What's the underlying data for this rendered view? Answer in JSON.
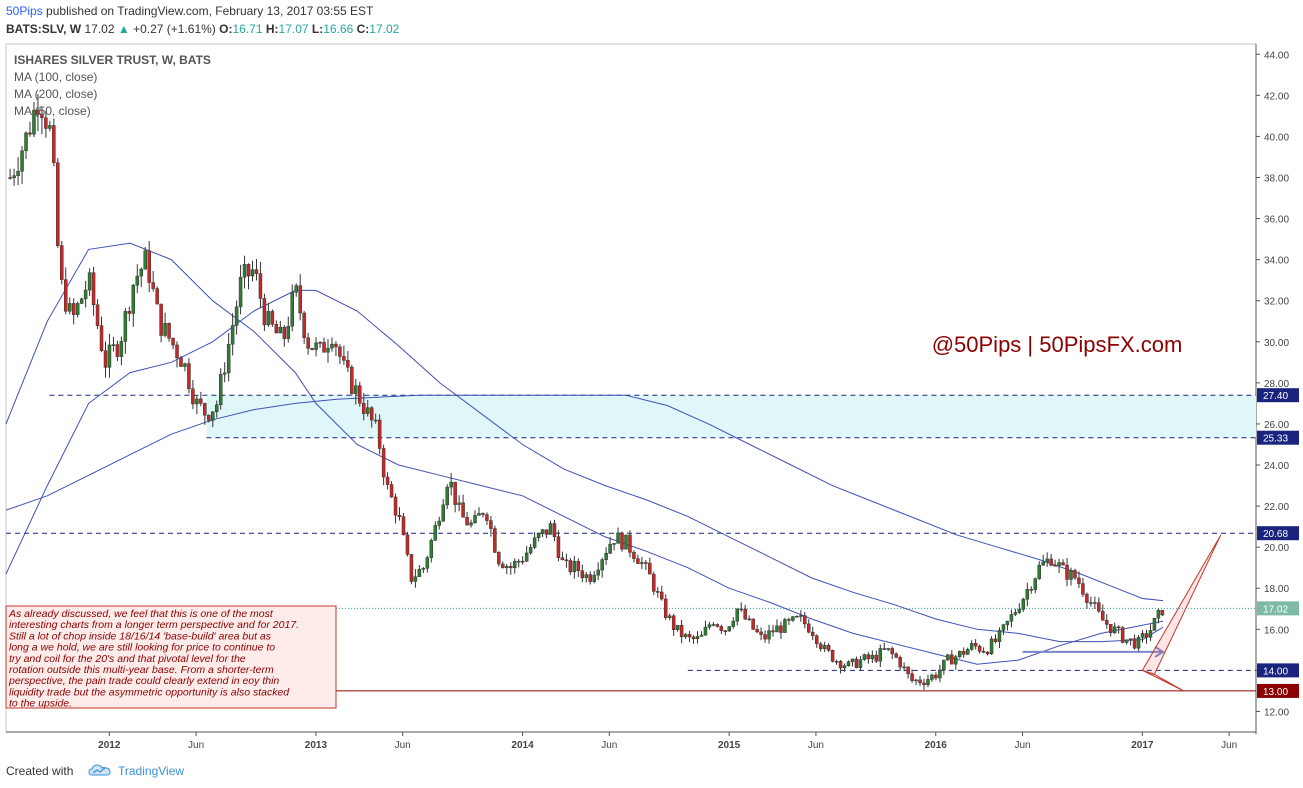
{
  "header": {
    "publisher": "50Pips",
    "published_text": "published on TradingView.com, February 13, 2017 03:55 EST",
    "symbol": "BATS:SLV, W",
    "last": "17.02",
    "change": "+0.27 (+1.61%)",
    "ohlc": [
      {
        "label": "O:",
        "value": "16.71"
      },
      {
        "label": "H:",
        "value": "17.07"
      },
      {
        "label": "L:",
        "value": "16.66"
      },
      {
        "label": "C:",
        "value": "17.02"
      }
    ]
  },
  "footer": {
    "created_with": "Created with",
    "brand": "TradingView"
  },
  "colors": {
    "up": "#26a69a",
    "down": "#ef5350",
    "candle_body_up": "#2e7d32",
    "candle_body_down": "#c62828",
    "ma": "#3f51b5",
    "zone_fill": "#e0f7fa",
    "dashed": "#1a237e",
    "annotation": "#8b0000",
    "note_border": "#c0392b",
    "note_bg": "#fdecea",
    "price_label": "#26a69a",
    "red_label": "#8b0000",
    "blue_label": "#1a237e"
  },
  "chart_data": {
    "type": "candlestick",
    "title": "ISHARES SILVER TRUST, W, BATS",
    "indicators": [
      "MA (100, close)",
      "MA (200, close)",
      "MA (50, close)"
    ],
    "x_ticks": [
      "2012",
      "Jun",
      "2013",
      "Jun",
      "2014",
      "Jun",
      "2015",
      "Jun",
      "2016",
      "Jun",
      "2017",
      "Jun"
    ],
    "y_ticks": [
      12,
      14,
      16,
      18,
      20,
      22,
      24,
      26,
      28,
      30,
      32,
      34,
      36,
      38,
      40,
      42,
      44
    ],
    "ylim": [
      11,
      44.5
    ],
    "xlim": [
      2011.5,
      2017.55
    ],
    "price_labels": [
      {
        "value": 27.4,
        "text": "27.40",
        "style": "blue"
      },
      {
        "value": 25.33,
        "text": "25.33",
        "style": "blue"
      },
      {
        "value": 20.68,
        "text": "20.68",
        "style": "blue"
      },
      {
        "value": 17.02,
        "text": "17.02",
        "style": "green"
      },
      {
        "value": 14.0,
        "text": "14.00",
        "style": "blue"
      },
      {
        "value": 13.0,
        "text": "13.00",
        "style": "red"
      }
    ],
    "zone": {
      "from": 25.33,
      "to": 27.4,
      "x_start": 2012.47,
      "x_end": 2017.55
    },
    "horizontal_lines": [
      {
        "value": 27.4,
        "x_start": 2011.71,
        "style": "dashed"
      },
      {
        "value": 25.33,
        "x_start": 2012.47,
        "style": "dashed"
      },
      {
        "value": 20.68,
        "x_start": 2011.5,
        "style": "dashed"
      },
      {
        "value": 17.02,
        "x_start": 2011.5,
        "style": "dotted"
      },
      {
        "value": 14.0,
        "x_start": 2014.8,
        "style": "dashed"
      },
      {
        "value": 13.0,
        "x_start": 2011.5,
        "style": "solid"
      }
    ],
    "ma_series": [
      {
        "name": "MA (100, close)",
        "points": [
          [
            2011.5,
            26
          ],
          [
            2011.7,
            31
          ],
          [
            2011.9,
            34.5
          ],
          [
            2012.1,
            34.8
          ],
          [
            2012.3,
            34
          ],
          [
            2012.5,
            32
          ],
          [
            2012.7,
            30.5
          ],
          [
            2012.9,
            28.5
          ],
          [
            2013.0,
            27
          ],
          [
            2013.2,
            25
          ],
          [
            2013.4,
            24
          ],
          [
            2013.6,
            23.5
          ],
          [
            2013.8,
            23
          ],
          [
            2014.0,
            22.5
          ],
          [
            2014.2,
            21.5
          ],
          [
            2014.4,
            20.5
          ],
          [
            2014.6,
            19.8
          ],
          [
            2014.8,
            19
          ],
          [
            2015.0,
            18
          ],
          [
            2015.2,
            17.3
          ],
          [
            2015.4,
            16.5
          ],
          [
            2015.6,
            15.8
          ],
          [
            2015.8,
            15.3
          ],
          [
            2016.0,
            14.8
          ],
          [
            2016.2,
            14.3
          ],
          [
            2016.4,
            14.5
          ],
          [
            2016.6,
            15.2
          ],
          [
            2016.8,
            15.8
          ],
          [
            2017.0,
            16.2
          ],
          [
            2017.1,
            16.4
          ]
        ]
      },
      {
        "name": "MA (200, close)",
        "points": [
          [
            2011.5,
            18.7
          ],
          [
            2011.7,
            23
          ],
          [
            2011.9,
            27
          ],
          [
            2012.1,
            28.5
          ],
          [
            2012.3,
            29
          ],
          [
            2012.5,
            30
          ],
          [
            2012.7,
            31.5
          ],
          [
            2012.9,
            32.5
          ],
          [
            2013.0,
            32.5
          ],
          [
            2013.2,
            31.5
          ],
          [
            2013.4,
            29.8
          ],
          [
            2013.6,
            28
          ],
          [
            2013.8,
            26.5
          ],
          [
            2014.0,
            25
          ],
          [
            2014.2,
            23.8
          ],
          [
            2014.4,
            23
          ],
          [
            2014.6,
            22.3
          ],
          [
            2014.8,
            21.5
          ],
          [
            2015.0,
            20.5
          ],
          [
            2015.2,
            19.5
          ],
          [
            2015.4,
            18.5
          ],
          [
            2015.6,
            17.8
          ],
          [
            2015.8,
            17.2
          ],
          [
            2016.0,
            16.5
          ],
          [
            2016.2,
            16
          ],
          [
            2016.4,
            15.8
          ],
          [
            2016.6,
            15.4
          ],
          [
            2016.8,
            15.4
          ],
          [
            2017.0,
            15.5
          ],
          [
            2017.1,
            16.1
          ]
        ]
      },
      {
        "name": "MA (50, close)",
        "points": [
          [
            2011.5,
            21.8
          ],
          [
            2011.7,
            22.5
          ],
          [
            2011.9,
            23.5
          ],
          [
            2012.1,
            24.5
          ],
          [
            2012.3,
            25.5
          ],
          [
            2012.5,
            26.2
          ],
          [
            2012.7,
            26.7
          ],
          [
            2012.9,
            27
          ],
          [
            2013.1,
            27.2
          ],
          [
            2013.3,
            27.3
          ],
          [
            2013.5,
            27.4
          ],
          [
            2013.7,
            27.4
          ],
          [
            2013.9,
            27.4
          ],
          [
            2014.1,
            27.4
          ],
          [
            2014.3,
            27.4
          ],
          [
            2014.5,
            27.4
          ],
          [
            2014.7,
            26.9
          ],
          [
            2014.9,
            26
          ],
          [
            2015.1,
            25
          ],
          [
            2015.3,
            24
          ],
          [
            2015.5,
            23
          ],
          [
            2015.7,
            22.2
          ],
          [
            2015.9,
            21.4
          ],
          [
            2016.1,
            20.6
          ],
          [
            2016.3,
            20
          ],
          [
            2016.5,
            19.4
          ],
          [
            2016.7,
            18.7
          ],
          [
            2016.9,
            17.9
          ],
          [
            2017.0,
            17.5
          ],
          [
            2017.1,
            17.4
          ]
        ]
      }
    ],
    "candle_path": [
      [
        2011.52,
        38
      ],
      [
        2011.6,
        40
      ],
      [
        2011.66,
        42
      ],
      [
        2011.72,
        40
      ],
      [
        2011.76,
        33
      ],
      [
        2011.82,
        31
      ],
      [
        2011.9,
        33
      ],
      [
        2011.98,
        29
      ],
      [
        2012.05,
        30
      ],
      [
        2012.12,
        33
      ],
      [
        2012.18,
        34
      ],
      [
        2012.24,
        31
      ],
      [
        2012.3,
        30
      ],
      [
        2012.36,
        29
      ],
      [
        2012.42,
        27
      ],
      [
        2012.47,
        26.5
      ],
      [
        2012.52,
        27
      ],
      [
        2012.58,
        30
      ],
      [
        2012.64,
        33
      ],
      [
        2012.7,
        33.5
      ],
      [
        2012.76,
        31
      ],
      [
        2012.84,
        30
      ],
      [
        2012.9,
        32.5
      ],
      [
        2012.96,
        30
      ],
      [
        2013.02,
        29.5
      ],
      [
        2013.08,
        30.5
      ],
      [
        2013.14,
        28.5
      ],
      [
        2013.2,
        27.5
      ],
      [
        2013.25,
        26.5
      ],
      [
        2013.3,
        25.5
      ],
      [
        2013.34,
        23
      ],
      [
        2013.4,
        21.5
      ],
      [
        2013.46,
        18.5
      ],
      [
        2013.52,
        19
      ],
      [
        2013.58,
        21
      ],
      [
        2013.64,
        23.5
      ],
      [
        2013.7,
        21.5
      ],
      [
        2013.76,
        21
      ],
      [
        2013.82,
        22
      ],
      [
        2013.88,
        19.5
      ],
      [
        2013.94,
        19
      ],
      [
        2014.0,
        19.5
      ],
      [
        2014.08,
        20.5
      ],
      [
        2014.14,
        21
      ],
      [
        2014.2,
        19
      ],
      [
        2014.26,
        19
      ],
      [
        2014.32,
        18.5
      ],
      [
        2014.38,
        19.5
      ],
      [
        2014.44,
        20.5
      ],
      [
        2014.5,
        20.2
      ],
      [
        2014.56,
        19.5
      ],
      [
        2014.62,
        18.5
      ],
      [
        2014.68,
        17
      ],
      [
        2014.74,
        16
      ],
      [
        2014.8,
        15.5
      ],
      [
        2014.86,
        15.5
      ],
      [
        2014.92,
        16.5
      ],
      [
        2014.98,
        16
      ],
      [
        2015.04,
        17
      ],
      [
        2015.1,
        16.2
      ],
      [
        2015.16,
        15.5
      ],
      [
        2015.22,
        16
      ],
      [
        2015.28,
        16.2
      ],
      [
        2015.34,
        16.5
      ],
      [
        2015.4,
        16
      ],
      [
        2015.46,
        15
      ],
      [
        2015.52,
        14.5
      ],
      [
        2015.58,
        14.2
      ],
      [
        2015.64,
        14.5
      ],
      [
        2015.7,
        14.6
      ],
      [
        2015.76,
        15
      ],
      [
        2015.82,
        14.5
      ],
      [
        2015.88,
        13.5
      ],
      [
        2015.94,
        13.5
      ],
      [
        2016.0,
        13.8
      ],
      [
        2016.06,
        14.5
      ],
      [
        2016.12,
        14.8
      ],
      [
        2016.18,
        15.2
      ],
      [
        2016.24,
        15
      ],
      [
        2016.3,
        15.5
      ],
      [
        2016.36,
        16.5
      ],
      [
        2016.42,
        17.5
      ],
      [
        2016.5,
        19
      ],
      [
        2016.56,
        19.5
      ],
      [
        2016.62,
        18.8
      ],
      [
        2016.68,
        18.5
      ],
      [
        2016.74,
        17.5
      ],
      [
        2016.8,
        16.5
      ],
      [
        2016.86,
        16
      ],
      [
        2016.92,
        15.5
      ],
      [
        2016.98,
        15.3
      ],
      [
        2017.04,
        16
      ],
      [
        2017.1,
        17.02
      ]
    ],
    "annotations": [
      {
        "type": "text",
        "text": "@50Pips | 50PipsFX.com"
      },
      {
        "type": "note",
        "text": "As already discussed, we feel that this is one of the most interesting charts from a longer term perspective and for 2017. Still a lot of chop inside 18/16/14 'base-build' area but as long a we hold, we are still looking for price to continue to try and coil for the 20's and that pivotal level for the rotation outside this multi-year base. From a shorter-term perspective, the pain trade could clearly extend in eoy thin liquidity trade but the asymmetric opportunity is also stacked to the upside."
      }
    ]
  }
}
